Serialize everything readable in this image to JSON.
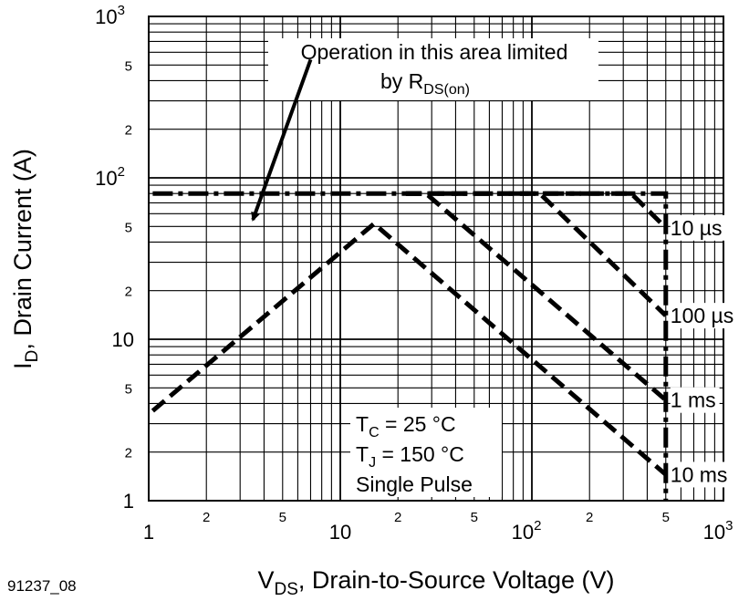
{
  "figure_id": "91237_08",
  "chart_data": {
    "type": "line",
    "x_scale": "log",
    "y_scale": "log",
    "xlim": [
      1,
      1000
    ],
    "ylim": [
      1,
      1000
    ],
    "grid": true,
    "xlabel": {
      "main": "V",
      "sub": "DS",
      "rest": ", Drain-to-Source Voltage (V)"
    },
    "ylabel": {
      "main": "I",
      "sub": "D",
      "rest": ", Drain Current (A)"
    },
    "x_ticks": [
      {
        "value": 1,
        "base": "1",
        "exp": ""
      },
      {
        "value": 2,
        "base": "2",
        "exp": ""
      },
      {
        "value": 5,
        "base": "5",
        "exp": ""
      },
      {
        "value": 10,
        "base": "10",
        "exp": ""
      },
      {
        "value": 20,
        "base": "2",
        "exp": ""
      },
      {
        "value": 50,
        "base": "5",
        "exp": ""
      },
      {
        "value": 100,
        "base": "10",
        "exp": "2"
      },
      {
        "value": 200,
        "base": "2",
        "exp": ""
      },
      {
        "value": 500,
        "base": "5",
        "exp": ""
      },
      {
        "value": 1000,
        "base": "10",
        "exp": "3"
      }
    ],
    "y_ticks": [
      {
        "value": 1,
        "base": "1",
        "exp": ""
      },
      {
        "value": 2,
        "base": "2",
        "exp": ""
      },
      {
        "value": 5,
        "base": "5",
        "exp": ""
      },
      {
        "value": 10,
        "base": "10",
        "exp": ""
      },
      {
        "value": 20,
        "base": "2",
        "exp": ""
      },
      {
        "value": 50,
        "base": "5",
        "exp": ""
      },
      {
        "value": 100,
        "base": "10",
        "exp": "2"
      },
      {
        "value": 200,
        "base": "2",
        "exp": ""
      },
      {
        "value": 500,
        "base": "5",
        "exp": ""
      },
      {
        "value": 1000,
        "base": "10",
        "exp": "3"
      }
    ],
    "boundary": {
      "style": "dash-dot",
      "points": [
        [
          1.05,
          80
        ],
        [
          500,
          80
        ],
        [
          500,
          1
        ]
      ]
    },
    "series": [
      {
        "name": "10 µs",
        "points": [
          [
            22,
            80
          ],
          [
            330,
            80
          ],
          [
            500,
            49
          ]
        ]
      },
      {
        "name": "100 µs",
        "points": [
          [
            22,
            80
          ],
          [
            110,
            80
          ],
          [
            500,
            14
          ]
        ]
      },
      {
        "name": "1 ms",
        "points": [
          [
            22,
            80
          ],
          [
            28,
            80
          ],
          [
            500,
            4.2
          ]
        ]
      },
      {
        "name": "10 ms",
        "points": [
          [
            1.05,
            3.6
          ],
          [
            15,
            52
          ],
          [
            500,
            1.45
          ]
        ]
      }
    ],
    "conditions": [
      {
        "main": "T",
        "sub": "C",
        "rest": " = 25 °C"
      },
      {
        "main": "T",
        "sub": "J",
        "rest": " = 150 °C"
      },
      {
        "main": "Single Pulse",
        "sub": "",
        "rest": ""
      }
    ],
    "annotation": {
      "line1": "Operation in this area limited",
      "line2_main": "by R",
      "line2_sub": "DS(on)",
      "arrow_from": [
        7,
        540
      ],
      "arrow_to": [
        3.5,
        55
      ]
    }
  }
}
